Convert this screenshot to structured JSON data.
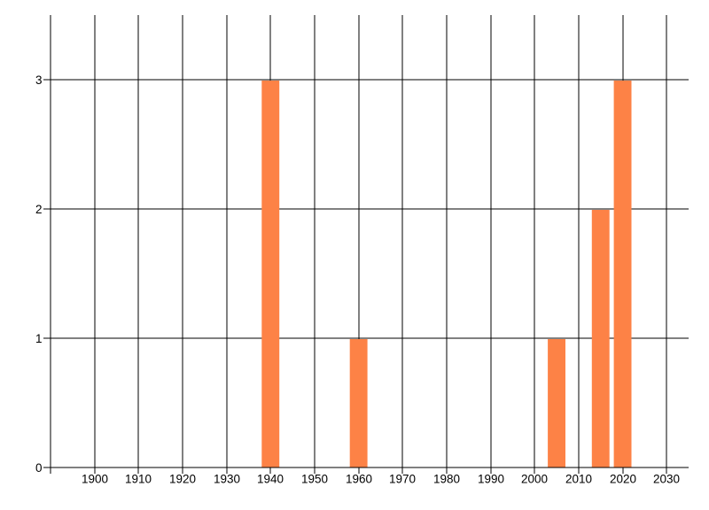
{
  "page": {
    "background": "#ffffff"
  },
  "chart_data": {
    "type": "bar",
    "title": "",
    "xlabel": "",
    "ylabel": "",
    "x": [
      1940,
      1960,
      2005,
      2015,
      2020
    ],
    "values": [
      3,
      1,
      1,
      2,
      3
    ],
    "bar_width_years": 4,
    "xlim": [
      1890,
      2035
    ],
    "ylim": [
      0,
      3.5
    ],
    "x_ticks": [
      1900,
      1910,
      1920,
      1930,
      1940,
      1950,
      1960,
      1970,
      1980,
      1990,
      2000,
      2010,
      2020,
      2030
    ],
    "y_ticks": [
      0,
      1,
      2,
      3
    ],
    "grid": "on",
    "legend": "none",
    "colors": {
      "bar": "#fd8246",
      "grid": "#000000",
      "axis": "#000000",
      "text": "#000000",
      "background": "#ffffff"
    }
  }
}
